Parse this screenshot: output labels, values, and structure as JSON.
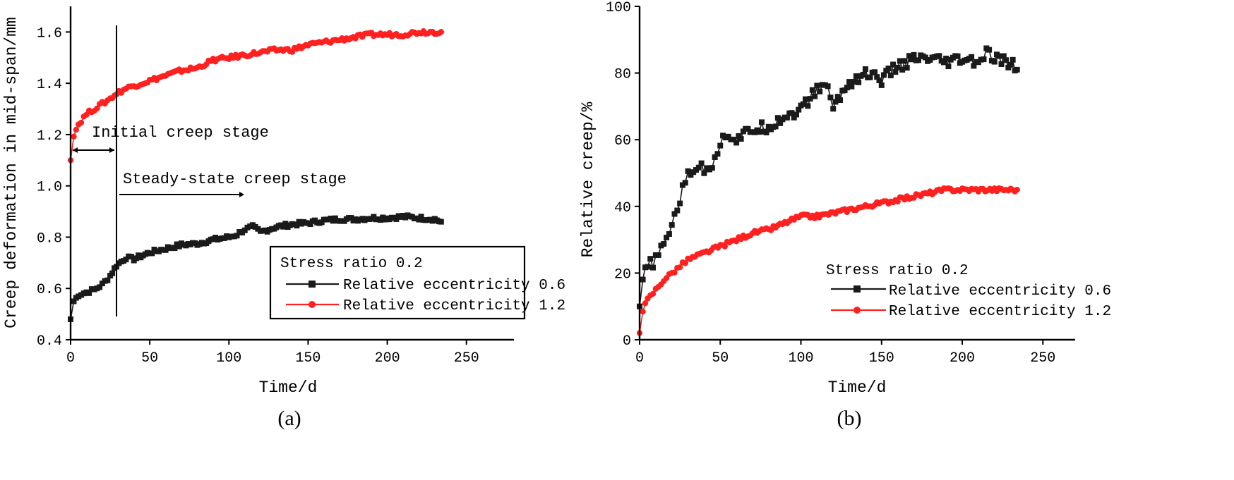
{
  "colors": {
    "black_series": "#1a1a1a",
    "red_series": "#ff2020"
  },
  "chart_data": [
    {
      "id": "a",
      "type": "line",
      "panel_label": "(a)",
      "xlabel": "Time/d",
      "ylabel": "Creep deformation in mid-span/mm",
      "xlim": [
        0,
        280
      ],
      "ylim": [
        0.4,
        1.7
      ],
      "xticks": [
        0,
        50,
        100,
        150,
        200,
        250
      ],
      "yticks": [
        0.4,
        0.6,
        0.8,
        1.0,
        1.2,
        1.4,
        1.6
      ],
      "legend": {
        "title": "Stress ratio 0.2",
        "entries": [
          "Relative eccentricity 0.6",
          "Relative eccentricity 1.2"
        ],
        "position": "bottom-right"
      },
      "annotations": {
        "initial_stage": "Initial creep stage",
        "steady_stage": "Steady-state creep stage",
        "divider_x": 29
      },
      "series": [
        {
          "name": "Relative eccentricity 0.6",
          "color": "#1a1a1a",
          "marker": "square",
          "x": [
            0,
            2,
            5,
            10,
            15,
            20,
            25,
            29,
            35,
            40,
            50,
            60,
            70,
            80,
            90,
            100,
            105,
            110,
            115,
            120,
            130,
            140,
            150,
            160,
            170,
            180,
            190,
            200,
            210,
            220,
            230,
            234
          ],
          "y": [
            0.48,
            0.55,
            0.575,
            0.585,
            0.595,
            0.615,
            0.65,
            0.69,
            0.72,
            0.715,
            0.74,
            0.755,
            0.77,
            0.775,
            0.79,
            0.8,
            0.81,
            0.83,
            0.84,
            0.82,
            0.84,
            0.85,
            0.855,
            0.865,
            0.87,
            0.87,
            0.875,
            0.875,
            0.88,
            0.875,
            0.87,
            0.86
          ]
        },
        {
          "name": "Relative eccentricity 1.2",
          "color": "#ff2020",
          "marker": "circle",
          "x": [
            0,
            2,
            5,
            10,
            15,
            20,
            25,
            29,
            35,
            40,
            50,
            60,
            70,
            80,
            90,
            100,
            110,
            120,
            130,
            140,
            150,
            160,
            170,
            180,
            190,
            200,
            210,
            220,
            230,
            234
          ],
          "y": [
            1.1,
            1.2,
            1.24,
            1.28,
            1.3,
            1.32,
            1.34,
            1.36,
            1.38,
            1.39,
            1.41,
            1.43,
            1.45,
            1.46,
            1.49,
            1.5,
            1.51,
            1.52,
            1.53,
            1.53,
            1.55,
            1.56,
            1.57,
            1.58,
            1.59,
            1.59,
            1.59,
            1.6,
            1.6,
            1.6
          ]
        }
      ]
    },
    {
      "id": "b",
      "type": "line",
      "panel_label": "(b)",
      "xlabel": "Time/d",
      "ylabel": "Relative creep/%",
      "xlim": [
        0,
        270
      ],
      "ylim": [
        0,
        100
      ],
      "xticks": [
        0,
        50,
        100,
        150,
        200,
        250
      ],
      "yticks": [
        0,
        20,
        40,
        60,
        80,
        100
      ],
      "legend": {
        "title": "Stress ratio 0.2",
        "entries": [
          "Relative eccentricity 0.6",
          "Relative eccentricity 1.2"
        ],
        "position": "bottom-right"
      },
      "series": [
        {
          "name": "Relative eccentricity 0.6",
          "color": "#1a1a1a",
          "marker": "square",
          "x": [
            0,
            2,
            5,
            10,
            15,
            20,
            25,
            30,
            35,
            40,
            45,
            50,
            55,
            60,
            70,
            80,
            90,
            100,
            110,
            115,
            120,
            130,
            140,
            150,
            160,
            170,
            180,
            190,
            200,
            210,
            215,
            220,
            230,
            234
          ],
          "y": [
            10,
            18,
            22,
            24,
            28,
            35,
            42,
            50,
            52,
            51,
            53,
            59,
            62,
            60,
            63,
            64,
            67,
            69,
            75,
            77,
            70,
            77,
            80,
            78,
            82,
            84,
            84,
            83,
            84,
            83,
            86,
            84,
            83,
            81
          ]
        },
        {
          "name": "Relative eccentricity 1.2",
          "color": "#ff2020",
          "marker": "circle",
          "x": [
            0,
            2,
            5,
            10,
            15,
            20,
            25,
            30,
            40,
            50,
            60,
            70,
            80,
            90,
            100,
            110,
            120,
            130,
            140,
            150,
            160,
            170,
            180,
            190,
            200,
            210,
            220,
            230,
            234
          ],
          "y": [
            2,
            9,
            12,
            15,
            18,
            20,
            22,
            24,
            26,
            28,
            30,
            32,
            33,
            35,
            37,
            37,
            38,
            39,
            40,
            41,
            42,
            43,
            44,
            45,
            45,
            45,
            45,
            45,
            45
          ]
        }
      ]
    }
  ]
}
